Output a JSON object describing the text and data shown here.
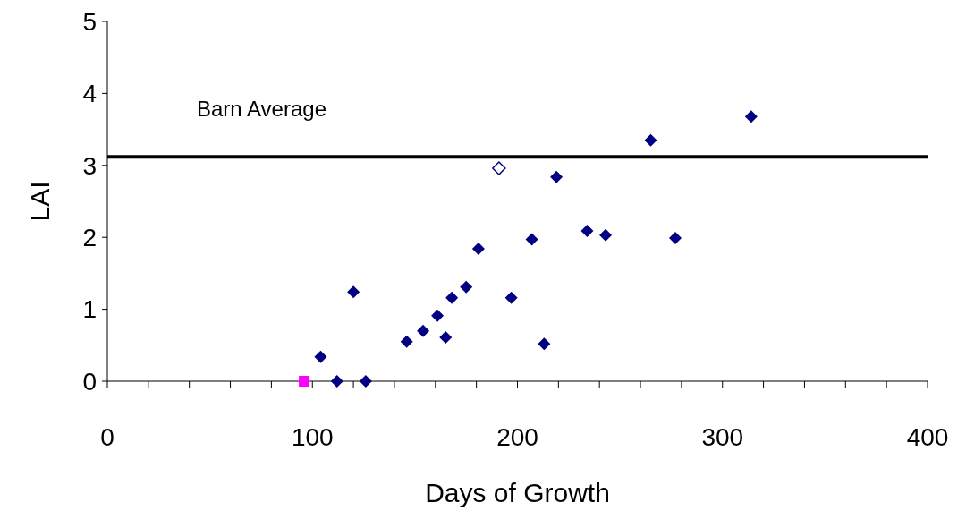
{
  "chart_data": {
    "type": "scatter",
    "xlabel": "Days of Growth",
    "ylabel": "LAI",
    "xlim": [
      0,
      400
    ],
    "xticks": [
      0,
      {
        "value": 20,
        "label": null
      },
      {
        "value": 40,
        "label": null
      },
      {
        "value": 60,
        "label": null
      },
      {
        "value": 80,
        "label": null
      },
      100,
      {
        "value": 120,
        "label": null
      },
      {
        "value": 140,
        "label": null
      },
      {
        "value": 160,
        "label": null
      },
      {
        "value": 180,
        "label": null
      },
      200,
      {
        "value": 220,
        "label": null
      },
      {
        "value": 240,
        "label": null
      },
      {
        "value": 260,
        "label": null
      },
      {
        "value": 280,
        "label": null
      },
      300,
      {
        "value": 320,
        "label": null
      },
      {
        "value": 340,
        "label": null
      },
      {
        "value": 360,
        "label": null
      },
      {
        "value": 380,
        "label": null
      },
      400
    ],
    "ylim": [
      0,
      5
    ],
    "yticks": [
      0,
      1,
      2,
      3,
      4,
      5
    ],
    "grid": false,
    "ref_lines": [
      {
        "axis": "y",
        "value": 3.12,
        "label": "Barn Average",
        "color": "#000000"
      }
    ],
    "series": [
      {
        "color": "#000080",
        "marker": "diamond",
        "x": [
          104,
          112,
          120,
          126,
          146,
          154,
          161,
          165,
          168,
          175,
          181,
          197,
          207,
          213,
          219,
          234,
          243,
          265,
          277,
          314
        ],
        "values": [
          0.34,
          0,
          1.24,
          0,
          0.55,
          0.7,
          0.91,
          0.61,
          1.16,
          1.31,
          1.84,
          1.16,
          1.97,
          0.52,
          2.84,
          2.09,
          2.03,
          3.35,
          1.99,
          3.68
        ]
      },
      {
        "color": "#ff00ff",
        "marker": "square",
        "x": [
          96
        ],
        "values": [
          0
        ]
      },
      {
        "color": "#000080",
        "marker": "diamond",
        "x": [
          191
        ],
        "values": [
          2.96
        ]
      }
    ]
  }
}
